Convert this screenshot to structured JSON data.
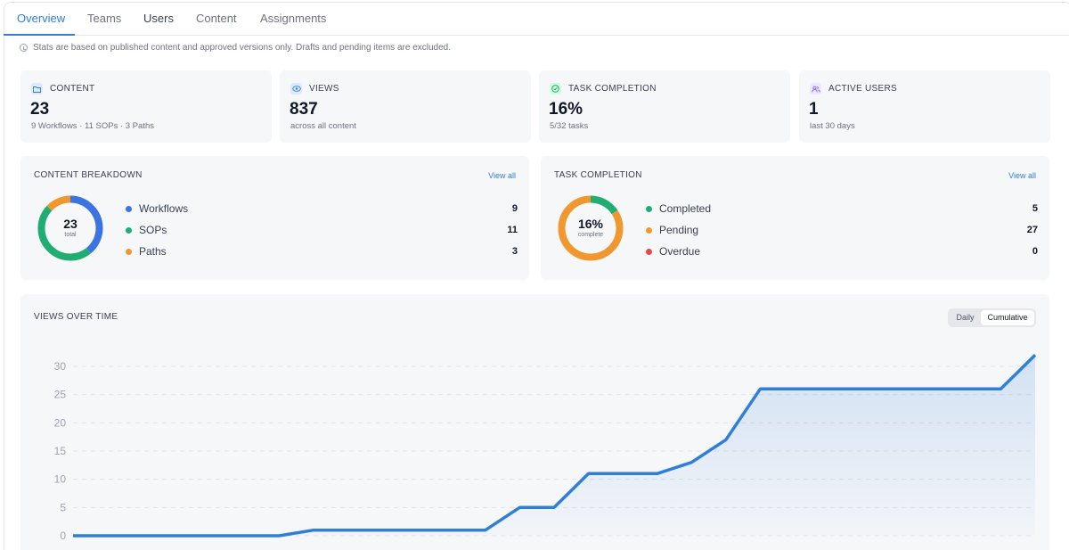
{
  "tabs": [
    {
      "label": "Overview"
    },
    {
      "label": "Teams"
    },
    {
      "label": "Users"
    },
    {
      "label": "Content"
    },
    {
      "label": "Assignments"
    }
  ],
  "notice": "Stats are based on published content and approved versions only. Drafts and pending items are excluded.",
  "stats": [
    {
      "label": "CONTENT",
      "value": "23",
      "sub": "9 Workflows · 11 SOPs · 3 Paths",
      "icon": "folder-icon",
      "color": "#2f7ed8"
    },
    {
      "label": "VIEWS",
      "value": "837",
      "sub": "across all content",
      "icon": "eye-icon",
      "color": "#2f7ed8"
    },
    {
      "label": "TASK COMPLETION",
      "value": "16%",
      "sub": "5/32 tasks",
      "icon": "check-circle-icon",
      "color": "#16a34a"
    },
    {
      "label": "ACTIVE USERS",
      "value": "1",
      "sub": "last 30 days",
      "icon": "users-icon",
      "color": "#8b5cf6"
    }
  ],
  "content_breakdown": {
    "title": "CONTENT BREAKDOWN",
    "view_all": "View all",
    "total": "23",
    "total_caption": "total",
    "items": [
      {
        "label": "Workflows",
        "value": 9,
        "color": "#3b73e0"
      },
      {
        "label": "SOPs",
        "value": 11,
        "color": "#20ad71"
      },
      {
        "label": "Paths",
        "value": 3,
        "color": "#f0982f"
      }
    ]
  },
  "task_completion": {
    "title": "TASK COMPLETION",
    "view_all": "View all",
    "center": "16%",
    "center_caption": "complete",
    "items": [
      {
        "label": "Completed",
        "value": 5,
        "color": "#20ad71"
      },
      {
        "label": "Pending",
        "value": 27,
        "color": "#f0982f"
      },
      {
        "label": "Overdue",
        "value": 0,
        "color": "#e5484d"
      }
    ]
  },
  "views_over_time": {
    "title": "VIEWS OVER TIME",
    "toggle": {
      "daily": "Daily",
      "cumulative": "Cumulative",
      "selected": "Cumulative"
    }
  },
  "chart_data": {
    "type": "area",
    "title": "VIEWS OVER TIME",
    "xlabel": "",
    "ylabel": "",
    "ylim": [
      0,
      32
    ],
    "yticks": [
      0,
      5,
      10,
      15,
      20,
      25,
      30
    ],
    "grid": true,
    "series": [
      {
        "color": "#2f7ed8",
        "values": [
          0,
          0,
          0,
          0,
          0,
          0,
          0,
          1,
          1,
          1,
          1,
          1,
          1,
          5,
          5,
          11,
          11,
          11,
          13,
          17,
          26,
          26,
          26,
          26,
          26,
          26,
          26,
          26,
          32
        ]
      }
    ]
  }
}
